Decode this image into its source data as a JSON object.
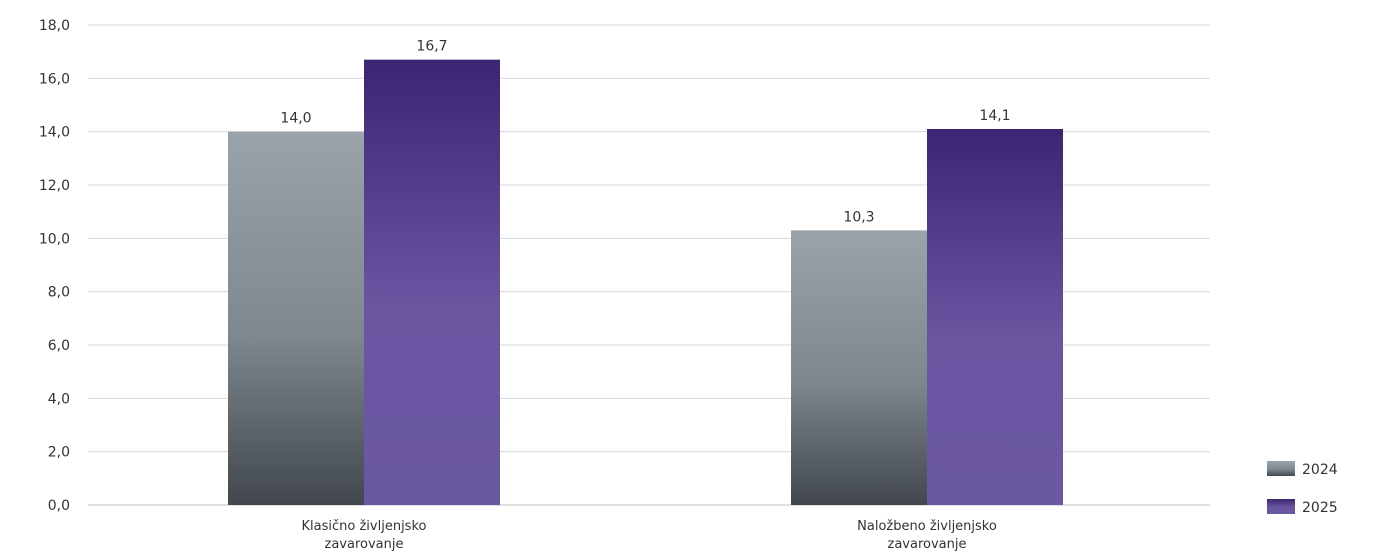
{
  "chart_data": {
    "type": "bar",
    "categories": [
      [
        "Klasično življenjsko",
        "zavarovanje"
      ],
      [
        "Naložbeno življenjsko",
        "zavarovanje"
      ]
    ],
    "series": [
      {
        "name": "2024",
        "values": [
          14.0,
          10.3
        ],
        "value_labels": [
          "14,0",
          "10,3"
        ],
        "color": "#8c959c"
      },
      {
        "name": "2025",
        "values": [
          16.7,
          14.1
        ],
        "value_labels": [
          "16,7",
          "14,1"
        ],
        "color": "#5b4596"
      }
    ],
    "y_ticks": [
      "0,0",
      "2,0",
      "4,0",
      "6,0",
      "8,0",
      "10,0",
      "12,0",
      "14,0",
      "16,0",
      "18,0"
    ],
    "ylim": [
      0,
      18
    ],
    "grid": true,
    "legend_position": "bottom-right"
  }
}
